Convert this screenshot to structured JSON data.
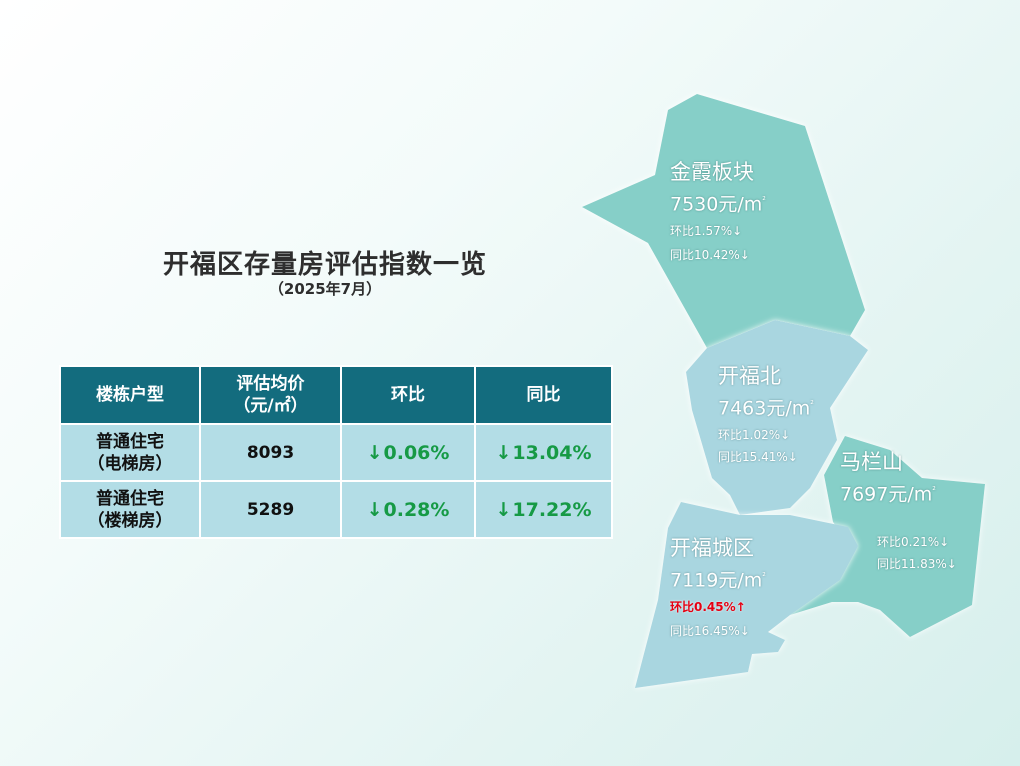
{
  "title": "开福区存量房评估指数一览",
  "subtitle": "（2025年7月）",
  "table": {
    "headers": [
      "楼栋户型",
      "评估均价",
      "（元/㎡）",
      "环比",
      "同比"
    ],
    "rows": [
      {
        "type_line1": "普通住宅",
        "type_line2": "（电梯房）",
        "price": "8093",
        "mom": "0.06%",
        "yoy": "13.04%",
        "mom_dir": "down",
        "yoy_dir": "down"
      },
      {
        "type_line1": "普通住宅",
        "type_line2": "（楼梯房）",
        "price": "5289",
        "mom": "0.28%",
        "yoy": "17.22%",
        "mom_dir": "down",
        "yoy_dir": "down"
      }
    ]
  },
  "map": {
    "regions": [
      {
        "name": "金霞板块",
        "price": "7530元/m",
        "price_sup": "²",
        "mom": "环比1.57%↓",
        "yoy": "同比10.42%↓",
        "color": "#86cfc8"
      },
      {
        "name": "开福北",
        "price": "7463元/m",
        "price_sup": "²",
        "mom": "环比1.02%↓",
        "yoy": "同比15.41%↓",
        "color": "#a9d6e0"
      },
      {
        "name": "马栏山",
        "price": "7697元/m",
        "price_sup": "²",
        "mom": "环比0.21%↓",
        "yoy": "同比11.83%↓",
        "color": "#86cfc8"
      },
      {
        "name": "开福城区",
        "price": "7119元/m",
        "price_sup": "²",
        "mom": "环比0.45%",
        "mom_arrow": "↑",
        "yoy": "同比16.45%↓",
        "color": "#a9d6e0"
      }
    ]
  },
  "colors": {
    "header_bg": "#136c7e",
    "cell_bg": "#b3dde6",
    "down_green": "#169a45",
    "up_red": "#e60012"
  }
}
